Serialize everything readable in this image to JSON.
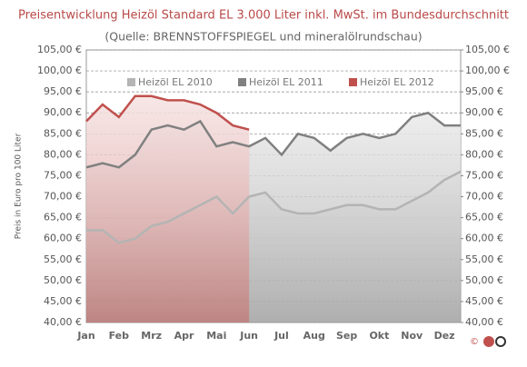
{
  "chart_data": {
    "type": "area",
    "title": "Preisentwicklung Heizöl Standard EL 3.000 Liter inkl. MwSt. im Bundesdurchschnitt",
    "subtitle": "(Quelle: BRENNSTOFFSPIEGEL und mineralölrundschau)",
    "y_label": "Preis in Euro pro 100 Liter",
    "categories": [
      "Jan",
      null,
      "Feb",
      null,
      "Mrz",
      null,
      "Apr",
      null,
      "Mai",
      null,
      "Jun",
      null,
      "Jul",
      null,
      "Aug",
      null,
      "Sep",
      null,
      "Okt",
      null,
      "Nov",
      null,
      "Dez",
      null
    ],
    "series": [
      {
        "name": "Heizöl EL 2010",
        "color": "#b4b4b4",
        "values": [
          62,
          62,
          59,
          60,
          63,
          64,
          66,
          68,
          70,
          66,
          70,
          71,
          67,
          66,
          66,
          67,
          68,
          68,
          67,
          67,
          69,
          71,
          74,
          76
        ]
      },
      {
        "name": "Heizöl EL 2011",
        "color": "#808080",
        "values": [
          77,
          78,
          77,
          80,
          86,
          87,
          86,
          88,
          82,
          83,
          82,
          84,
          80,
          85,
          84,
          81,
          84,
          85,
          84,
          85,
          89,
          90,
          87,
          87
        ]
      },
      {
        "name": "Heizöl EL 2012",
        "color": "#c0504d",
        "values": [
          88,
          92,
          89,
          94,
          94,
          93,
          93,
          92,
          90,
          87,
          86,
          null,
          null,
          null,
          null,
          null,
          null,
          null,
          null,
          null,
          null,
          null,
          null,
          null
        ]
      }
    ],
    "ylim": [
      40,
      105
    ],
    "yticks": [
      {
        "value": 40,
        "label": "40,00 €"
      },
      {
        "value": 45,
        "label": "45,00 €"
      },
      {
        "value": 50,
        "label": "50,00 €"
      },
      {
        "value": 55,
        "label": "55,00 €"
      },
      {
        "value": 60,
        "label": "60,00 €"
      },
      {
        "value": 65,
        "label": "65,00 €"
      },
      {
        "value": 70,
        "label": "70,00 €"
      },
      {
        "value": 75,
        "label": "75,00 €"
      },
      {
        "value": 80,
        "label": "80,00 €"
      },
      {
        "value": 85,
        "label": "85,00 €"
      },
      {
        "value": 90,
        "label": "90,00 €"
      },
      {
        "value": 95,
        "label": "95,00 €"
      },
      {
        "value": 100,
        "label": "100,00 €"
      },
      {
        "value": 105,
        "label": "105,00 €"
      }
    ],
    "y2lim": [
      40,
      105
    ],
    "y2ticks": [
      {
        "value": 40,
        "label": "40,00 €"
      },
      {
        "value": 45,
        "label": "45,00 €"
      },
      {
        "value": 50,
        "label": "50,00 €"
      },
      {
        "value": 55,
        "label": "55,00 €"
      },
      {
        "value": 60,
        "label": "60,00 €"
      },
      {
        "value": 65,
        "label": "65,00 €"
      },
      {
        "value": 70,
        "label": "70,00 €"
      },
      {
        "value": 75,
        "label": "75,00 €"
      },
      {
        "value": 80,
        "label": "80,00 €"
      },
      {
        "value": 85,
        "label": "85,00 €"
      },
      {
        "value": 90,
        "label": "90,00 €"
      },
      {
        "value": 95,
        "label": "95,00 €"
      },
      {
        "value": 100,
        "label": "100,00 €"
      },
      {
        "value": 105,
        "label": "105,00 €"
      }
    ],
    "grid": true,
    "legend": "top"
  }
}
